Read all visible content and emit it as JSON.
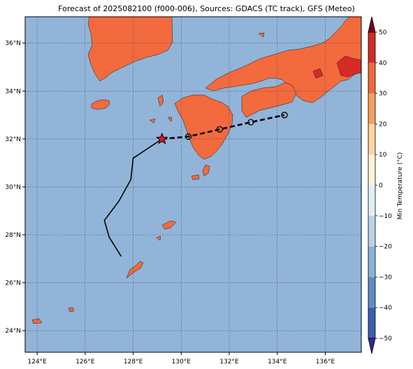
{
  "title": "Forecast of 2025082100 (f000-006), Sources: GDACS (TC track), GFS (Meteo)",
  "map": {
    "lon_range": [
      123.5,
      137.5
    ],
    "lat_range": [
      23.1,
      37.1
    ],
    "lon_ticks": [
      124,
      126,
      128,
      130,
      132,
      134,
      136
    ],
    "lat_ticks": [
      24,
      26,
      28,
      30,
      32,
      34,
      36
    ],
    "lon_labels": [
      "124°E",
      "126°E",
      "128°E",
      "130°E",
      "132°E",
      "134°E",
      "136°E"
    ],
    "lat_labels": [
      "24°N",
      "26°N",
      "28°N",
      "30°N",
      "32°N",
      "34°N",
      "36°N"
    ],
    "ocean_color": "#92b4d8",
    "land_color": "#f26a3d",
    "warm_color": "#d42b26",
    "grid": "dotted"
  },
  "chart_data": {
    "type": "map",
    "past_track": [
      [
        127.5,
        27.1
      ],
      [
        127.0,
        27.9
      ],
      [
        126.8,
        28.6
      ],
      [
        127.4,
        29.4
      ],
      [
        127.9,
        30.3
      ],
      [
        128.0,
        31.2
      ],
      [
        129.2,
        32.0
      ]
    ],
    "current_position": [
      129.2,
      32.0
    ],
    "forecast_track": [
      [
        129.2,
        32.0
      ],
      [
        130.3,
        32.1
      ],
      [
        131.6,
        32.4
      ],
      [
        132.9,
        32.7
      ],
      [
        134.3,
        33.0
      ]
    ],
    "forecast_points": [
      [
        130.3,
        32.1
      ],
      [
        131.6,
        32.4
      ],
      [
        132.9,
        32.7
      ],
      [
        134.3,
        33.0
      ]
    ]
  },
  "colorbar": {
    "label": "Min Temperature (°C)",
    "min": -55,
    "max": 55,
    "ticks": [
      -50,
      -40,
      -30,
      -20,
      -10,
      0,
      10,
      20,
      30,
      40,
      50
    ],
    "tick_labels": [
      "−50",
      "−40",
      "−30",
      "−20",
      "−10",
      "0",
      "10",
      "20",
      "30",
      "40",
      "50"
    ],
    "colors": [
      "#2b2c8e",
      "#3a5fb1",
      "#5f8dc4",
      "#8ab4d8",
      "#b7d3e8",
      "#e1eef6",
      "#fdf3d6",
      "#fdd49e",
      "#f8a05a",
      "#ee6a3c",
      "#d42b26",
      "#a50026",
      "#7a0021"
    ]
  }
}
